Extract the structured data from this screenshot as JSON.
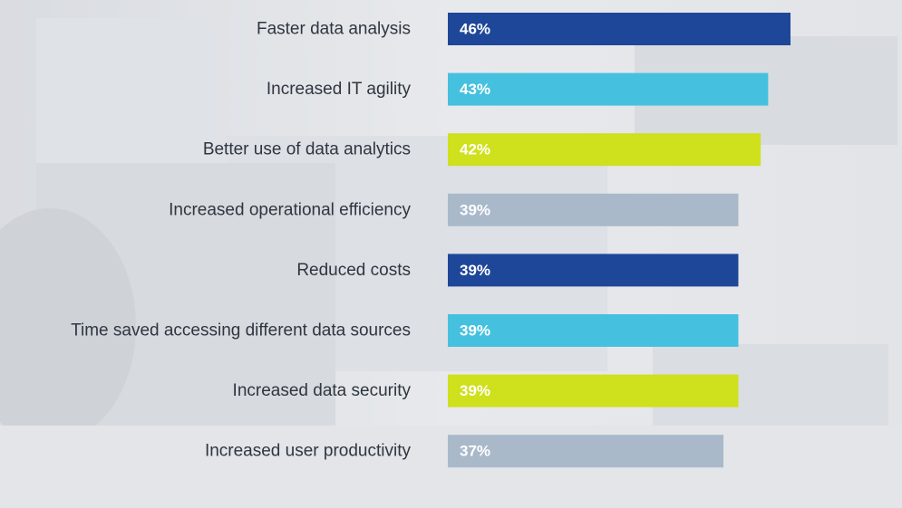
{
  "chart_data": {
    "type": "bar",
    "orientation": "horizontal",
    "categories": [
      "Faster data analysis",
      "Increased IT agility",
      "Better use of data analytics",
      "Increased operational efficiency",
      "Reduced costs",
      "Time saved accessing different data sources",
      "Increased data security",
      "Increased user productivity"
    ],
    "values": [
      46,
      43,
      42,
      39,
      39,
      39,
      39,
      37
    ],
    "value_labels": [
      "46%",
      "43%",
      "42%",
      "39%",
      "39%",
      "39%",
      "39%",
      "37%"
    ],
    "unit": "%",
    "title": "",
    "xlabel": "",
    "ylabel": "",
    "xlim": [
      0,
      46
    ],
    "grid": false,
    "legend": "none",
    "bar_colors": [
      "#1f4799",
      "#45c1df",
      "#cfe01c",
      "#a9b9ca",
      "#1f4799",
      "#45c1df",
      "#cfe01c",
      "#a9b9ca"
    ]
  }
}
